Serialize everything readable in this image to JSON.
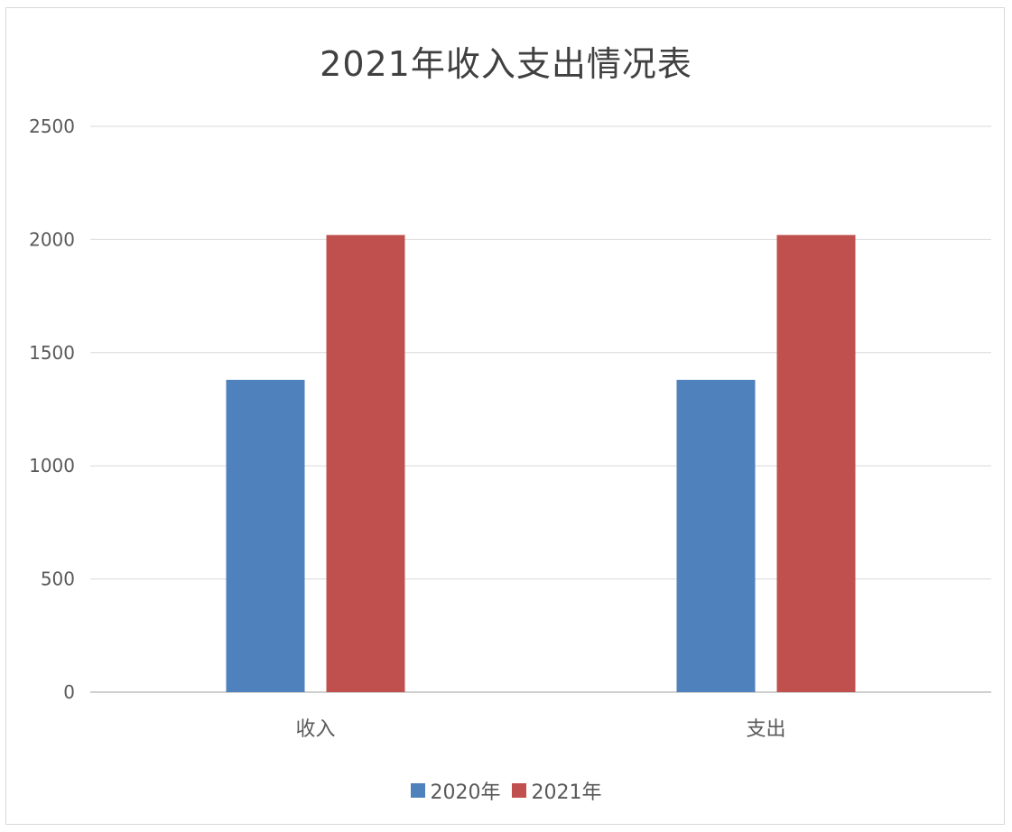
{
  "chart_data": {
    "type": "bar",
    "title": "2021年收入支出情况表",
    "categories": [
      "收入",
      "支出"
    ],
    "series": [
      {
        "name": "2020年",
        "values": [
          1380,
          1380
        ],
        "color": "#4f81bd"
      },
      {
        "name": "2021年",
        "values": [
          2020,
          2020
        ],
        "color": "#c0504d"
      }
    ],
    "ylim": [
      0,
      2500
    ],
    "yticks": [
      0,
      500,
      1000,
      1500,
      2000,
      2500
    ],
    "grid": true,
    "legend_position": "bottom"
  }
}
